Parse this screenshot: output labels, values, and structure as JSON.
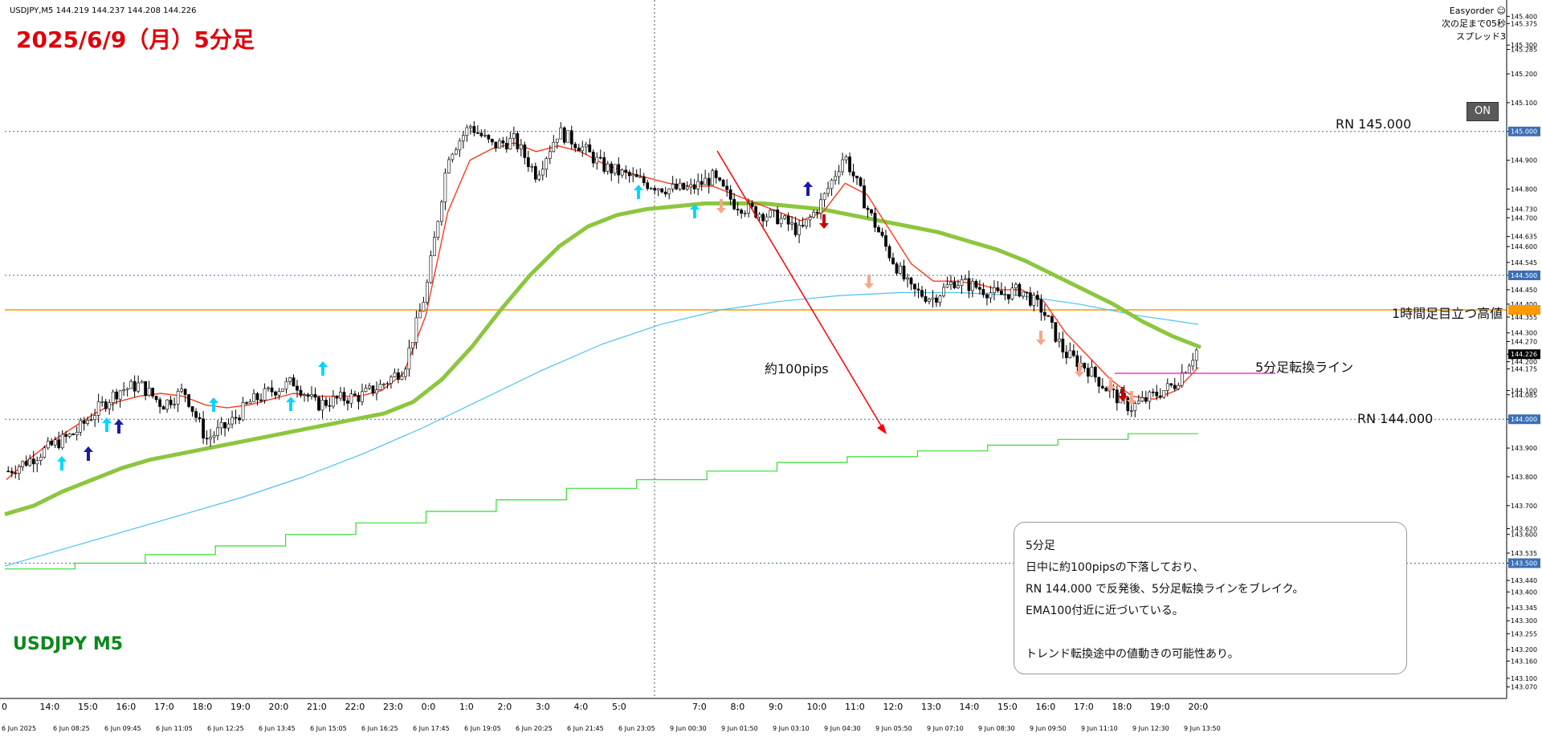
{
  "header": {
    "symbol_info": "USDJPY,M5  144.219 144.237 144.208 144.226",
    "broker": "Easyorder ☺",
    "next_bar": "次の足まで05秒",
    "spread": "スプレッド3"
  },
  "title": "2025/6/9（月）5分足",
  "symbol_label": "USDJPY M5",
  "toggle_label": "ON",
  "annotations": {
    "rn_145": "RN 145.000",
    "rn_144": "RN 144.000",
    "h1_high": "1時間足目立つ高値",
    "switch_line": "5分足転換ライン",
    "pips": "約100pips"
  },
  "infobox": {
    "line1": "5分足",
    "line2": "日中に約100pipsの下落しており、",
    "line3": "RN  144.000 で反発後、5分足転換ラインをブレイク。",
    "line4": "EMA100付近に近づいている。",
    "line5": "",
    "line6": "トレンド転換途中の値動きの可能性あり。"
  },
  "colors": {
    "bull_candle": "#ffffff",
    "bear_candle": "#000000",
    "ema_fast": "#ff3a1a",
    "ema_mid": "#8dc63f",
    "ema_slow": "#4cc3ee",
    "ma_step": "#33dd33",
    "h1_line": "#ff9900",
    "switch_line": "#ff33cc",
    "arrow_trend": "#ff0000"
  },
  "chart_data": {
    "type": "candlestick",
    "ylim": [
      143.03,
      145.44
    ],
    "price_ticks": [
      "145.400",
      "145.375",
      "145.300",
      "145.285",
      "145.200",
      "145.100",
      "145.000",
      "144.900",
      "144.800",
      "144.730",
      "144.700",
      "144.635",
      "144.600",
      "144.545",
      "144.500",
      "144.450",
      "144.400",
      "144.355",
      "144.300",
      "144.270",
      "144.226",
      "144.200",
      "144.175",
      "144.100",
      "144.085",
      "144.000",
      "143.900",
      "143.800",
      "143.700",
      "143.620",
      "143.600",
      "143.535",
      "143.500",
      "143.440",
      "143.400",
      "143.345",
      "143.300",
      "143.255",
      "143.200",
      "143.160",
      "143.100",
      "143.070"
    ],
    "current_price": "144.226",
    "hours_top": [
      "0",
      "14:0",
      "15:0",
      "16:0",
      "17:0",
      "18:0",
      "19:0",
      "20:0",
      "21:0",
      "22:0",
      "23:0",
      "0:0",
      "1:0",
      "2:0",
      "3:0",
      "4:0",
      "5:0",
      "7:0",
      "8:0",
      "9:0",
      "10:0",
      "11:0",
      "12:0",
      "13:0",
      "14:0",
      "15:0",
      "16:0",
      "17:0",
      "18:0",
      "19:0",
      "20:0"
    ],
    "dates_bottom": [
      "6 Jun 2025",
      "6 Jun 08:25",
      "6 Jun 09:45",
      "6 Jun 11:05",
      "6 Jun 12:25",
      "6 Jun 13:45",
      "6 Jun 15:05",
      "6 Jun 16:25",
      "6 Jun 17:45",
      "6 Jun 19:05",
      "6 Jun 20:25",
      "6 Jun 21:45",
      "6 Jun 23:05",
      "9 Jun 00:30",
      "9 Jun 01:50",
      "9 Jun 03:10",
      "9 Jun 04:30",
      "9 Jun 05:50",
      "9 Jun 07:10",
      "9 Jun 08:30",
      "9 Jun 09:50",
      "9 Jun 11:10",
      "9 Jun 12:30",
      "9 Jun 13:50"
    ],
    "levels": {
      "rn_high": 145.0,
      "rn_low": 144.0,
      "h1_high": 144.38,
      "grid_500": 144.5,
      "grid_3500": 143.5
    },
    "close_path": [
      143.82,
      143.86,
      143.91,
      143.95,
      144.03,
      144.1,
      144.12,
      144.05,
      144.1,
      143.93,
      143.98,
      144.06,
      144.1,
      144.13,
      144.05,
      144.07,
      144.08,
      144.12,
      144.18,
      144.45,
      144.92,
      145.02,
      144.95,
      144.97,
      144.85,
      145.0,
      144.95,
      144.88,
      144.85,
      144.82,
      144.8,
      144.8,
      144.84,
      144.75,
      144.72,
      144.7,
      144.65,
      144.76,
      144.92,
      144.74,
      144.58,
      144.45,
      144.42,
      144.48,
      144.46,
      144.43,
      144.45,
      144.38,
      144.23,
      144.18,
      144.1,
      144.04,
      144.08,
      144.12,
      144.24
    ],
    "series": [
      {
        "name": "EMA fast",
        "values": [
          143.79,
          143.86,
          143.92,
          143.97,
          144.02,
          144.06,
          144.08,
          144.09,
          144.08,
          144.05,
          144.04,
          144.05,
          144.07,
          144.09,
          144.08,
          144.08,
          144.08,
          144.1,
          144.16,
          144.36,
          144.72,
          144.9,
          144.94,
          144.96,
          144.93,
          144.95,
          144.93,
          144.89,
          144.86,
          144.84,
          144.82,
          144.81,
          144.81,
          144.78,
          144.75,
          144.72,
          144.69,
          144.72,
          144.82,
          144.78,
          144.66,
          144.54,
          144.48,
          144.48,
          144.47,
          144.45,
          144.45,
          144.41,
          144.3,
          144.22,
          144.14,
          144.08,
          144.07,
          144.1,
          144.18
        ]
      },
      {
        "name": "EMA mid",
        "values": [
          143.67,
          143.7,
          143.75,
          143.79,
          143.83,
          143.86,
          143.88,
          143.9,
          143.92,
          143.94,
          143.96,
          143.98,
          144.0,
          144.02,
          144.06,
          144.14,
          144.25,
          144.38,
          144.5,
          144.6,
          144.67,
          144.71,
          144.73,
          144.74,
          144.75,
          144.75,
          144.75,
          144.74,
          144.73,
          144.71,
          144.69,
          144.67,
          144.65,
          144.62,
          144.59,
          144.55,
          144.5,
          144.45,
          144.4,
          144.34,
          144.29,
          144.25
        ]
      },
      {
        "name": "EMA slow",
        "values": [
          143.49,
          143.55,
          143.61,
          143.67,
          143.73,
          143.8,
          143.88,
          143.97,
          144.07,
          144.17,
          144.26,
          144.33,
          144.38,
          144.41,
          144.43,
          144.44,
          144.44,
          144.43,
          144.4,
          144.36,
          144.33
        ]
      },
      {
        "name": "MA step",
        "values": [
          143.48,
          143.5,
          143.53,
          143.56,
          143.6,
          143.64,
          143.68,
          143.72,
          143.76,
          143.79,
          143.82,
          143.85,
          143.87,
          143.89,
          143.91,
          143.93,
          143.95
        ]
      }
    ]
  }
}
